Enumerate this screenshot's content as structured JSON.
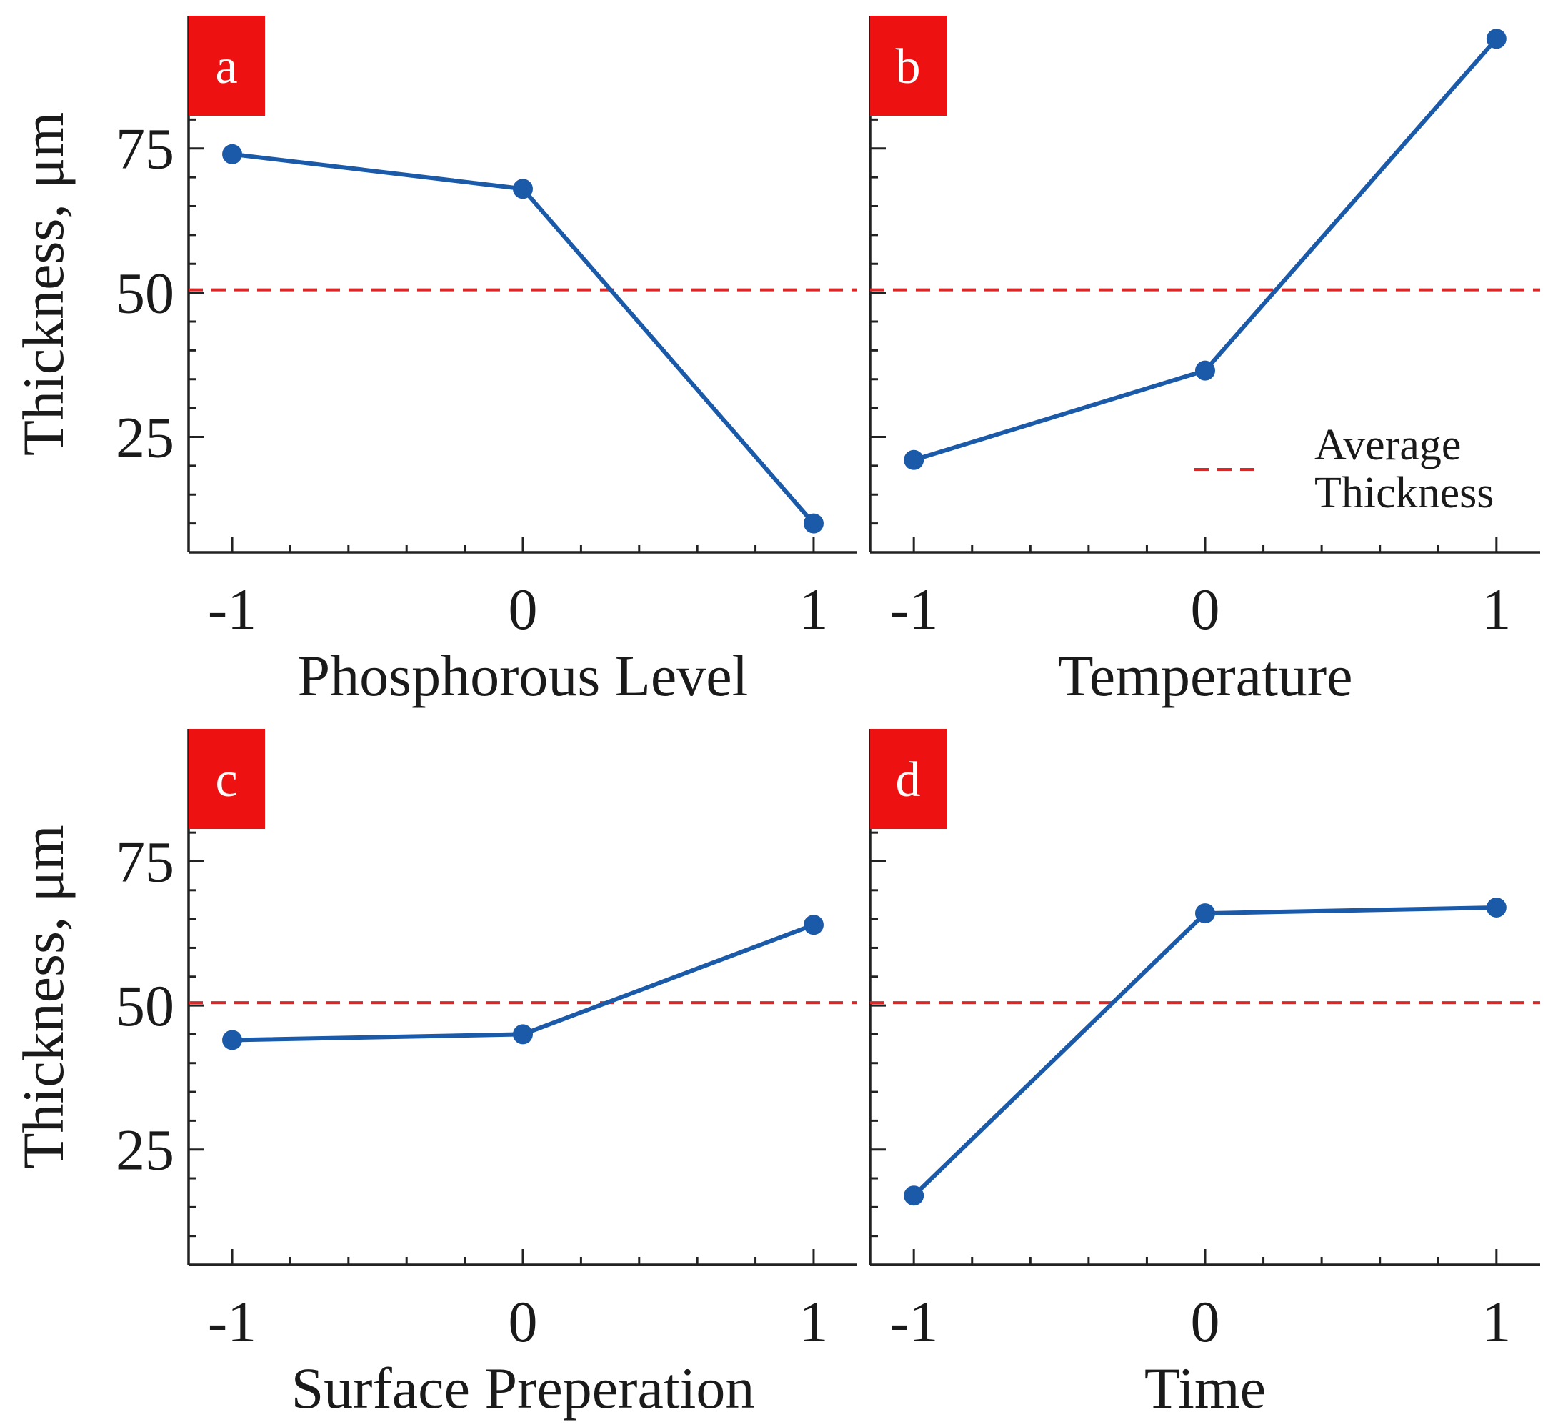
{
  "chart_data": [
    {
      "type": "line",
      "panel_label": "a",
      "xlabel": "Phosphorous Level",
      "ylabel": "Thickness, μm",
      "x": [
        -1,
        0,
        1
      ],
      "x_tick_labels": [
        "-1",
        "0",
        "1"
      ],
      "y_tick_labels": [
        "25",
        "50",
        "75"
      ],
      "values": [
        74,
        68,
        10
      ],
      "average": 50.5,
      "xlim": [
        -1.15,
        1.15
      ],
      "ylim": [
        5,
        98
      ],
      "y_ticks": [
        25,
        50,
        75
      ]
    },
    {
      "type": "line",
      "panel_label": "b",
      "xlabel": "Temperature",
      "ylabel": "",
      "x": [
        -1,
        0,
        1
      ],
      "x_tick_labels": [
        "-1",
        "0",
        "1"
      ],
      "y_tick_labels": [],
      "values": [
        21,
        36.5,
        94
      ],
      "average": 50.5,
      "xlim": [
        -1.15,
        1.15
      ],
      "ylim": [
        5,
        98
      ],
      "y_ticks": [
        25,
        50,
        75
      ],
      "legend": {
        "line1": "Average",
        "line2": "Thickness",
        "placement": "bottom-right"
      }
    },
    {
      "type": "line",
      "panel_label": "c",
      "xlabel": "Surface Preperation",
      "ylabel": "Thickness, μm",
      "x": [
        -1,
        0,
        1
      ],
      "x_tick_labels": [
        "-1",
        "0",
        "1"
      ],
      "y_tick_labels": [
        "25",
        "50",
        "75"
      ],
      "values": [
        44,
        45,
        64
      ],
      "average": 50.5,
      "xlim": [
        -1.15,
        1.15
      ],
      "ylim": [
        5,
        98
      ],
      "y_ticks": [
        25,
        50,
        75
      ]
    },
    {
      "type": "line",
      "panel_label": "d",
      "xlabel": "Time",
      "ylabel": "",
      "x": [
        -1,
        0,
        1
      ],
      "x_tick_labels": [
        "-1",
        "0",
        "1"
      ],
      "y_tick_labels": [],
      "values": [
        17,
        66,
        67
      ],
      "average": 50.5,
      "xlim": [
        -1.15,
        1.15
      ],
      "ylim": [
        5,
        98
      ],
      "y_ticks": [
        25,
        50,
        75
      ]
    }
  ],
  "colors": {
    "series": "#1a5aa8",
    "average": "#d42a2a",
    "label_box": "#ee1111",
    "axis": "#222222"
  }
}
